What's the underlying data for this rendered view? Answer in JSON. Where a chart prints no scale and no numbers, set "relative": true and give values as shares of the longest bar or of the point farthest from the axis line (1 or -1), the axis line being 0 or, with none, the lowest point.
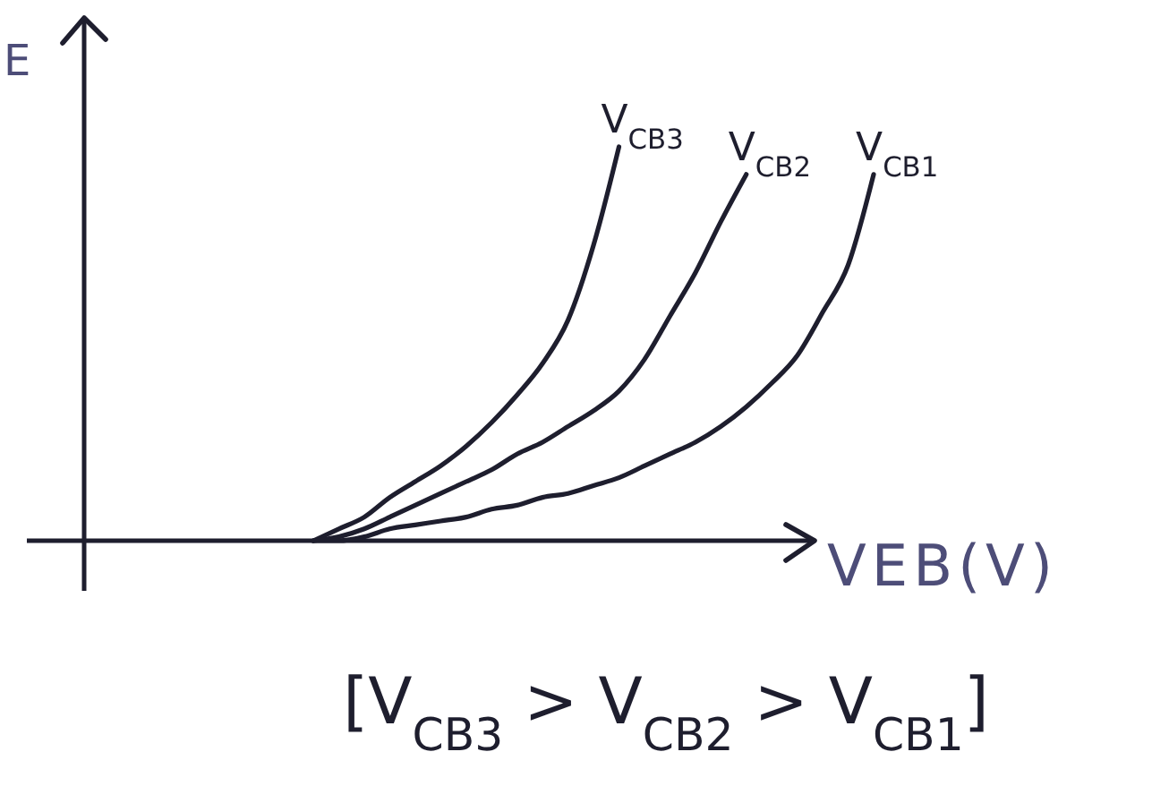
{
  "chart_data": {
    "type": "line",
    "relative": true,
    "xlabel": "VEB(V)",
    "ylabel": "E",
    "categories": [
      null,
      null,
      null,
      null,
      null,
      null,
      null,
      null,
      null,
      null,
      null,
      null,
      null,
      null,
      null,
      null,
      null,
      null,
      null,
      null,
      null,
      null,
      null,
      null,
      null,
      null,
      null,
      null,
      null,
      null,
      null,
      null
    ],
    "series": [
      {
        "name": "V$_{CB3}$",
        "color": "#1e1e2e",
        "values": [
          null,
          null,
          null,
          null,
          null,
          null,
          null,
          null,
          null,
          0,
          0.03,
          0.06,
          0.11,
          0.15,
          0.19,
          0.24,
          0.3,
          0.37,
          0.45,
          0.56,
          0.75,
          1,
          null,
          null,
          null,
          null,
          null,
          null,
          null,
          null,
          null,
          null
        ]
      },
      {
        "name": "V$_{CB2}$",
        "color": "#1e1e2e",
        "values": [
          null,
          null,
          null,
          null,
          null,
          null,
          null,
          null,
          null,
          0,
          0.01,
          0.03,
          0.06,
          0.09,
          0.12,
          0.15,
          0.18,
          0.22,
          0.25,
          0.29,
          0.33,
          0.38,
          0.46,
          0.57,
          0.68,
          0.81,
          0.93,
          null,
          null,
          null,
          null,
          null
        ]
      },
      {
        "name": "V$_{CB1}$",
        "color": "#1e1e2e",
        "values": [
          null,
          null,
          null,
          null,
          null,
          null,
          null,
          null,
          null,
          0,
          0,
          0.01,
          0.03,
          0.04,
          0.05,
          0.06,
          0.08,
          0.09,
          0.11,
          0.12,
          0.14,
          0.16,
          0.19,
          0.22,
          0.25,
          0.29,
          0.34,
          0.4,
          0.47,
          0.58,
          0.7,
          0.93
        ]
      }
    ],
    "annotations": [
      "[V$_{CB3}$ > V$_{CB2}$ > V$_{CB1}$]"
    ]
  }
}
